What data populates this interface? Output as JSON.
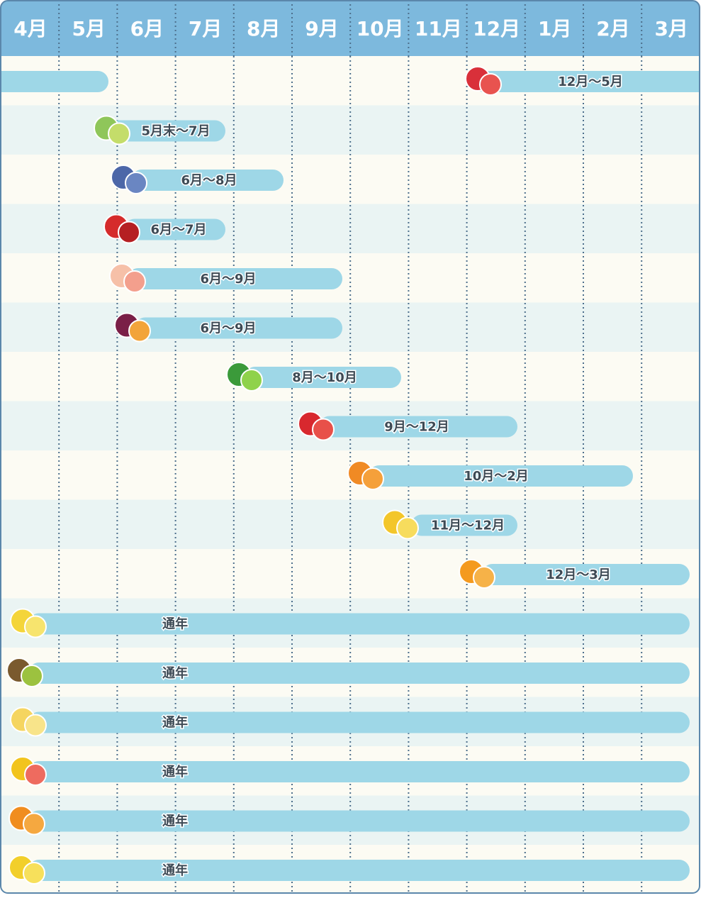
{
  "header": {
    "months": [
      "4月",
      "5月",
      "6月",
      "7月",
      "8月",
      "9月",
      "10月",
      "11月",
      "12月",
      "1月",
      "2月",
      "3月"
    ]
  },
  "rows": [
    {
      "label": "12月～5月"
    },
    {
      "label": "5月末～7月"
    },
    {
      "label": "6月～8月"
    },
    {
      "label": "6月～7月"
    },
    {
      "label": "6月～9月"
    },
    {
      "label": "6月～9月"
    },
    {
      "label": "8月～10月"
    },
    {
      "label": "9月～12月"
    },
    {
      "label": "10月～2月"
    },
    {
      "label": "11月～12月"
    },
    {
      "label": "12月～3月"
    },
    {
      "label": "通年"
    },
    {
      "label": "通年"
    },
    {
      "label": "通年"
    },
    {
      "label": "通年"
    },
    {
      "label": "通年"
    },
    {
      "label": "通年"
    }
  ]
}
